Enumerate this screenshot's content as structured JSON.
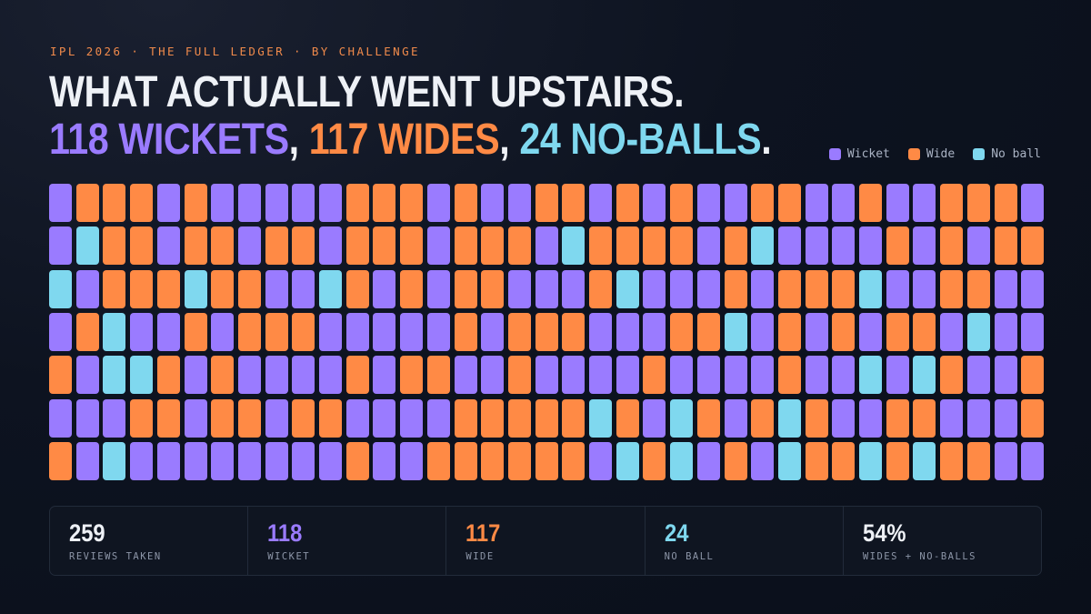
{
  "kicker": "IPL 2026 · THE FULL LEDGER · BY CHALLENGE",
  "headline": {
    "line1": "WHAT ACTUALLY WENT UPSTAIRS.",
    "wickets": "118 WICKETS",
    "sep1": ", ",
    "wides": "117 WIDES",
    "sep2": ", ",
    "noballs": "24 NO-BALLS",
    "end": "."
  },
  "legend": [
    {
      "label": "Wicket",
      "color": "#9a7bff"
    },
    {
      "label": "Wide",
      "color": "#ff8a45"
    },
    {
      "label": "No ball",
      "color": "#7fd8ef"
    }
  ],
  "chart_data": {
    "type": "waffle",
    "columns": 37,
    "rows": 7,
    "categories": [
      "Wicket",
      "Wide",
      "No ball"
    ],
    "counts": {
      "Wicket": 118,
      "Wide": 117,
      "No ball": 24
    },
    "total": 259,
    "colors": {
      "W": "#9a7bff",
      "D": "#ff8a45",
      "N": "#7fd8ef"
    },
    "cells": [
      "WDDDWDWWWWWDDDWDWWDDWDWDWWDDWWDWWDDDW",
      "WNDDWDDWDDWDDDWDDDWNDDDDWDNWWWWDWDWDD",
      "NWDDDNDDWWNDWDWDDWWWDNWWWDWDDDNWWDDWW",
      "WDNWWDWDDDWWWWWDWDDDWWWDDNWDWDWDDWNWW",
      "DWNNDWDWWWWDWDDWWDWWWWDWWWWDWWNWNDWWD",
      "WWWDDWDDWDDWWWWDDDDDNDWNDWDNDWWDDWWWD",
      "DWNWWWWWWWWDWWDDDDDDWNDNWDWNDDNDNDDWW"
    ]
  },
  "stats": [
    {
      "value": "259",
      "label": "REVIEWS TAKEN",
      "color": "#eef1f6"
    },
    {
      "value": "118",
      "label": "WICKET",
      "color": "#9a7bff"
    },
    {
      "value": "117",
      "label": "WIDE",
      "color": "#ff8a45"
    },
    {
      "value": "24",
      "label": "NO BALL",
      "color": "#7fd8ef"
    },
    {
      "value": "54%",
      "label": "WIDES + NO-BALLS",
      "color": "#eef1f6"
    }
  ]
}
